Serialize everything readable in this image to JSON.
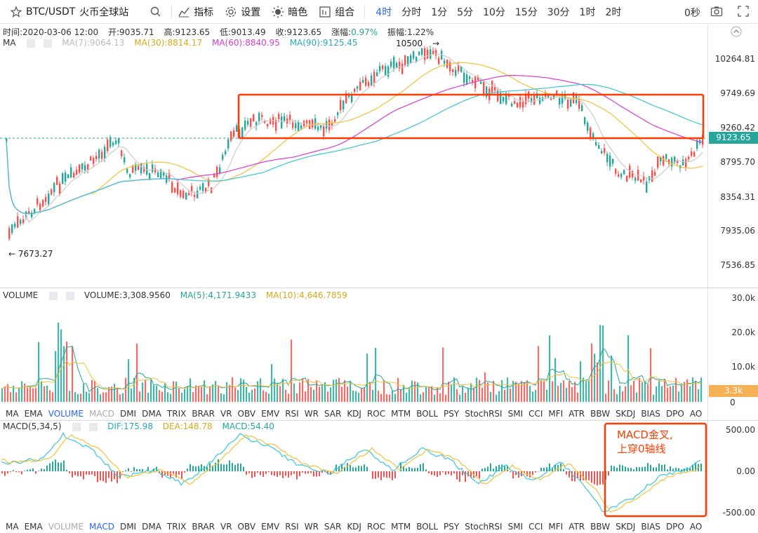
{
  "toolbar": {
    "symbol": "BTC/USDT",
    "exchange": "火币全球站",
    "indicators_label": "指标",
    "settings_label": "设置",
    "theme_label": "暗色",
    "combo_label": "组合",
    "intervals": [
      "4时",
      "分时",
      "1分",
      "5分",
      "10分",
      "15分",
      "30分",
      "1时",
      "2时"
    ],
    "countdown": "0秒"
  },
  "legend": {
    "time": "时间:2020-03-06 12:00",
    "open": "开:9035.71",
    "high": "高:9123.65",
    "low": "低:9013.49",
    "close": "收:9123.65",
    "change_label": "涨幅:",
    "change_value": "0.97%",
    "amplitude": "振幅:1.22%"
  },
  "ma_legend": {
    "name": "MA",
    "ma7": "MA(7):9064.13",
    "ma30": "MA(30):8814.17",
    "ma60": "MA(60):8840.95",
    "ma90": "MA(90):9125.45"
  },
  "price_markers": {
    "high": "10500",
    "low": "7673.27",
    "current": "9123.65"
  },
  "price_axis": [
    "10264.81",
    "9749.69",
    "9260.42",
    "8795.70",
    "8354.31",
    "7935.06",
    "7536.85"
  ],
  "volume": {
    "name": "VOLUME",
    "value": "VOLUME:3,308.9560",
    "ma5": "MA(5):4,171.9433",
    "ma10": "MA(10):4,646.7859",
    "axis": [
      "30.0k",
      "20.0k",
      "10.0k",
      "0"
    ],
    "current": "3.3k"
  },
  "macd": {
    "name": "MACD(5,34,5)",
    "dif": "DIF:175.98",
    "dea": "DEA:148.78",
    "macd": "MACD:54.40",
    "axis": [
      "500.00",
      "0.00",
      "-500.00"
    ]
  },
  "indicator_tabs": [
    "MA",
    "EMA",
    "VOLUME",
    "MACD",
    "DMI",
    "DMA",
    "TRIX",
    "BRAR",
    "VR",
    "OBV",
    "EMV",
    "RSI",
    "WR",
    "SAR",
    "KDJ",
    "ROC",
    "MTM",
    "BOLL",
    "PSY",
    "StochRSI",
    "SMI",
    "CCI",
    "MFI",
    "ATR",
    "BBW",
    "SKDJ",
    "BIAS",
    "DPO",
    "AO"
  ],
  "annotation": {
    "line1": "MACD金叉,",
    "line2": "上穿0轴线"
  },
  "colors": {
    "up": "#26a69a",
    "down": "#ef5350",
    "ma7": "#cccccc",
    "ma30": "#f0c23a",
    "ma60": "#d63bd1",
    "ma90": "#37c6d6",
    "accent": "#2962ff",
    "annot": "#ff3b00"
  }
}
